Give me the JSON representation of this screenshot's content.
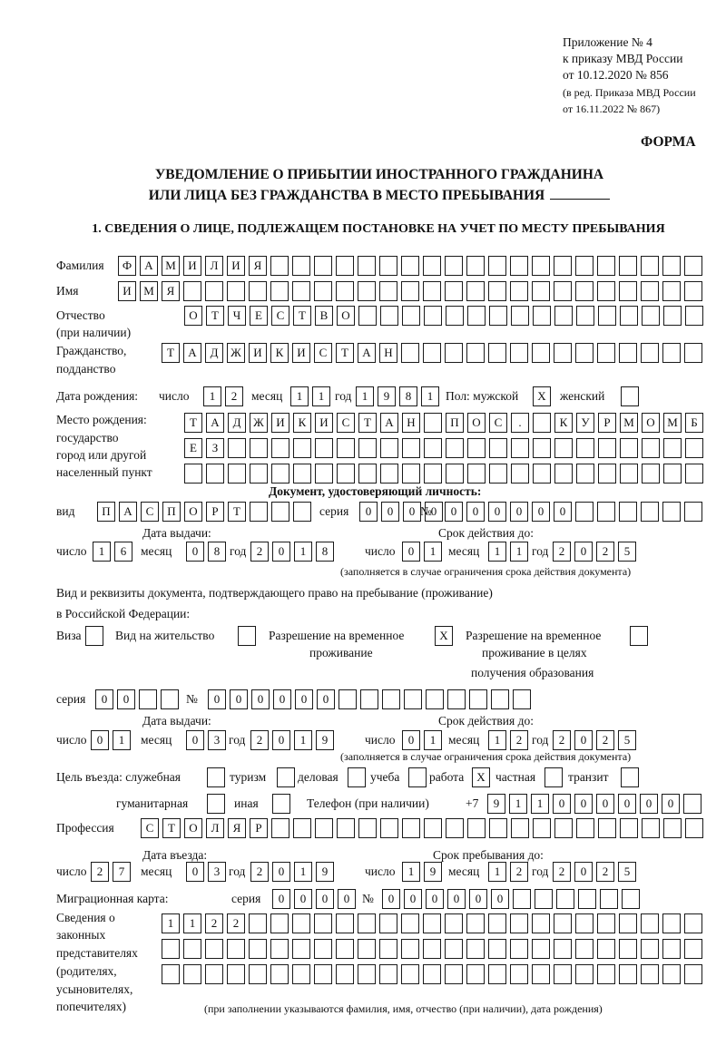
{
  "header": {
    "appendix": [
      "Приложение № 4",
      "к приказу МВД России",
      "от 10.12.2020 № 856"
    ],
    "edition": [
      "(в ред. Приказа МВД России",
      "от 16.11.2022 № 867)"
    ],
    "form_label": "ФОРМА",
    "title_line1": "УВЕДОМЛЕНИЕ О ПРИБЫТИИ ИНОСТРАННОГО ГРАЖДАНИНА",
    "title_line2": "ИЛИ ЛИЦА БЕЗ ГРАЖДАНСТВА В МЕСТО ПРЕБЫВАНИЯ"
  },
  "section1": {
    "heading": "1. СВЕДЕНИЯ О ЛИЦЕ, ПОДЛЕЖАЩЕМ ПОСТАНОВКЕ НА УЧЕТ ПО МЕСТУ ПРЕБЫВАНИЯ",
    "surname": {
      "label": "Фамилия",
      "value": "ФАМИЛИЯ"
    },
    "name": {
      "label": "Имя",
      "value": "ИМЯ"
    },
    "patronymic": {
      "label": "Отчество",
      "label2": "(при наличии)",
      "value": "ОТЧЕСТВО"
    },
    "citizenship": {
      "label": "Гражданство,",
      "label2": "подданство",
      "value": "ТАДЖИКИСТАН"
    },
    "birth": {
      "label": "Дата рождения:",
      "day_label": "число",
      "day": "12",
      "month_label": "месяц",
      "month": "11",
      "year_label": "год",
      "year": "1981",
      "sex_label": "Пол: мужской",
      "male_checked": "X",
      "female_label": "женский",
      "female_checked": ""
    },
    "birthplace": {
      "label": "Место рождения:",
      "label2": "государство",
      "label3": "город или другой",
      "label4": "населенный пункт",
      "rows": [
        "ТАДЖИКИСТАН ПОС. КУРМОМБ",
        "ЕЗ",
        ""
      ]
    },
    "id_document": {
      "heading": "Документ, удостоверяющий личность:",
      "type_label": "вид",
      "type": "ПАСПОРТ",
      "series_label": "серия",
      "series": "0000",
      "number_label": "№",
      "number": "000000",
      "issue_label": "Дата выдачи:",
      "valid_label": "Срок действия до:",
      "day_label": "число",
      "month_label": "месяц",
      "year_label": "год",
      "issue_day": "16",
      "issue_month": "08",
      "issue_year": "2018",
      "valid_day": "01",
      "valid_month": "11",
      "valid_year": "2025",
      "valid_note": "(заполняется в случае ограничения срока действия документа)"
    },
    "stay_document": {
      "label": "Вид и реквизиты документа, подтверждающего право на пребывание (проживание)",
      "label2": "в Российской Федерации:",
      "visa_label": "Виза",
      "visa": "",
      "residence_label": "Вид на жительство",
      "residence": "",
      "trp_label": "Разрешение на временное",
      "trp_label2": "проживание",
      "trp": "X",
      "trp_edu_label": "Разрешение на временное",
      "trp_edu_label2": "проживание в целях",
      "trp_edu_label3": "получения образования",
      "trp_edu": "",
      "series_label": "серия",
      "series": "00",
      "number_label": "№",
      "number": "000000",
      "issue_label": "Дата выдачи:",
      "valid_label": "Срок действия до:",
      "day_label": "число",
      "month_label": "месяц",
      "year_label": "год",
      "issue_day": "01",
      "issue_month": "03",
      "issue_year": "2019",
      "valid_day": "01",
      "valid_month": "12",
      "valid_year": "2025",
      "valid_note": "(заполняется в случае ограничения срока действия документа)"
    },
    "purpose": {
      "label": "Цель въезда: служебная",
      "service": "",
      "tourism_label": "туризм",
      "tourism": "",
      "business_label": "деловая",
      "business": "",
      "study_label": "учеба",
      "study": "",
      "work_label": "работа",
      "work": "X",
      "private_label": "частная",
      "private": "",
      "transit_label": "транзит",
      "transit": "",
      "humanitarian_label": "гуманитарная",
      "humanitarian": "",
      "other_label": "иная",
      "other": ""
    },
    "phone": {
      "label": "Телефон (при наличии)",
      "prefix": "+7",
      "value": "911000000"
    },
    "profession": {
      "label": "Профессия",
      "value": "СТОЛЯР"
    },
    "entry": {
      "entry_label": "Дата въезда:",
      "stay_until_label": "Срок пребывания до:",
      "day_label": "число",
      "month_label": "месяц",
      "year_label": "год",
      "entry_day": "27",
      "entry_month": "03",
      "entry_year": "2019",
      "until_day": "19",
      "until_month": "12",
      "until_year": "2025"
    },
    "migration_card": {
      "label": "Миграционная карта:",
      "series_label": "серия",
      "series": "0000",
      "number_label": "№",
      "number": "000000"
    },
    "representatives": {
      "labels": [
        "Сведения о",
        "законных",
        "представителях",
        "(родителях,",
        "усыновителях,",
        "попечителях)"
      ],
      "rows": [
        "1122",
        "",
        ""
      ],
      "note": "(при заполнении указываются фамилия, имя, отчество (при наличии), дата рождения)"
    }
  }
}
